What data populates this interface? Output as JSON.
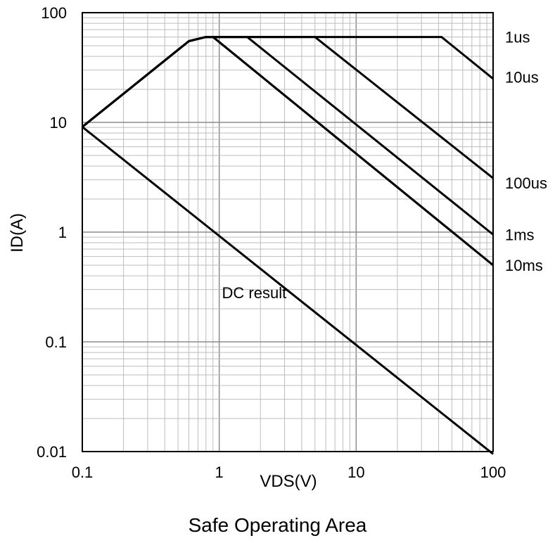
{
  "caption": "Safe Operating Area",
  "chart_data": {
    "type": "line",
    "title": "",
    "xlabel": "VDS(V)",
    "ylabel": "ID(A)",
    "xscale": "log",
    "yscale": "log",
    "xlim": [
      0.1,
      100
    ],
    "ylim": [
      0.01,
      100
    ],
    "grid": true,
    "x_tick_labels": [
      {
        "value": 0.1,
        "label": "0.1"
      },
      {
        "value": 1,
        "label": "1"
      },
      {
        "value": 10,
        "label": "10"
      },
      {
        "value": 100,
        "label": "100"
      }
    ],
    "y_tick_labels": [
      {
        "value": 0.01,
        "label": "0.01"
      },
      {
        "value": 0.1,
        "label": "0.1"
      },
      {
        "value": 1,
        "label": "1"
      },
      {
        "value": 10,
        "label": "10"
      },
      {
        "value": 100,
        "label": "100"
      }
    ],
    "series": [
      {
        "name": "1us",
        "points": [
          [
            0.1,
            9.1
          ],
          [
            0.6,
            55
          ],
          [
            0.8,
            60
          ],
          [
            42,
            60
          ],
          [
            100,
            25
          ]
        ]
      },
      {
        "name": "10us",
        "points": [
          [
            0.1,
            9.1
          ],
          [
            0.6,
            55
          ],
          [
            0.8,
            60
          ],
          [
            5,
            60
          ],
          [
            100,
            3.1
          ]
        ]
      },
      {
        "name": "100us",
        "points": [
          [
            0.1,
            9.1
          ],
          [
            0.6,
            55
          ],
          [
            0.8,
            60
          ],
          [
            1.6,
            60
          ],
          [
            100,
            0.95
          ]
        ]
      },
      {
        "name": "1ms",
        "points": [
          [
            0.1,
            9.1
          ],
          [
            0.6,
            55
          ],
          [
            0.8,
            60
          ],
          [
            0.9,
            60
          ],
          [
            100,
            0.5
          ]
        ]
      },
      {
        "name": "10ms",
        "points": [
          [
            0.1,
            9.1
          ],
          [
            0.6,
            55
          ],
          [
            0.8,
            60
          ],
          [
            0.9,
            60
          ],
          [
            100,
            0.5
          ]
        ]
      },
      {
        "name": "DC result",
        "points": [
          [
            0.1,
            9.1
          ],
          [
            100,
            0.0095
          ]
        ]
      }
    ],
    "annotations": [
      {
        "text": "1us",
        "x": 100,
        "y": 60
      },
      {
        "text": "10us",
        "x": 100,
        "y": 26
      },
      {
        "text": "100us",
        "x": 100,
        "y": 2.8
      },
      {
        "text": "1ms",
        "x": 100,
        "y": 0.95
      },
      {
        "text": "10ms",
        "x": 100,
        "y": 0.5
      },
      {
        "text": "DC result",
        "x": 1.8,
        "y": 0.28
      }
    ]
  }
}
